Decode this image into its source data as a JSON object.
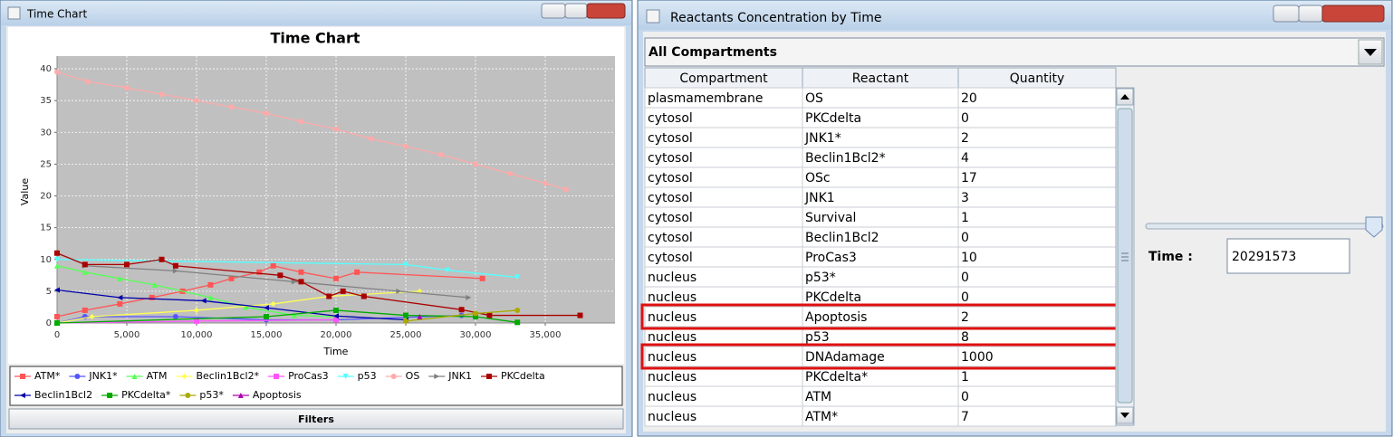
{
  "left_window": {
    "title": "Time Chart",
    "filters_button": "Filters"
  },
  "chart_data": {
    "type": "line",
    "title": "Time Chart",
    "x_label": "Time",
    "y_label": "Value",
    "xlim": [
      0,
      40000
    ],
    "ylim": [
      0,
      42
    ],
    "xticks": [
      0,
      {
        "value": 5000,
        "label": "5,000"
      },
      {
        "value": 10000,
        "label": "10,000"
      },
      {
        "value": 15000,
        "label": "15,000"
      },
      {
        "value": 20000,
        "label": "20,000"
      },
      {
        "value": 25000,
        "label": "25,000"
      },
      {
        "value": 30000,
        "label": "30,000"
      },
      {
        "value": 35000,
        "label": "35,000"
      }
    ],
    "yticks": [
      0,
      5,
      10,
      15,
      20,
      25,
      30,
      35,
      40
    ],
    "grid": true,
    "series": [
      {
        "name": "ATM*",
        "color": "#ff5555",
        "marker": "square",
        "x": [
          0,
          2000,
          4500,
          6800,
          9000,
          11000,
          12500,
          14500,
          15500,
          17500,
          20000,
          21500,
          30500
        ],
        "values": [
          1,
          2,
          3,
          4,
          5,
          6,
          7,
          8,
          9,
          8,
          7,
          8,
          7
        ]
      },
      {
        "name": "JNK1*",
        "color": "#5555ff",
        "marker": "circle",
        "x": [
          0,
          2000,
          8500,
          15000,
          20000,
          29000
        ],
        "values": [
          0,
          1,
          1,
          0.5,
          0.5,
          1.2
        ]
      },
      {
        "name": "ATM",
        "color": "#55ff55",
        "marker": "triangle-up",
        "x": [
          0,
          2000,
          4500,
          7000,
          11000,
          13500,
          17000,
          20000
        ],
        "values": [
          9,
          8,
          7,
          6,
          4,
          2.5,
          1.2,
          1
        ]
      },
      {
        "name": "Beclin1Bcl2*",
        "color": "#ffff55",
        "marker": "diamond",
        "x": [
          0,
          2500,
          10000,
          15500,
          19500,
          26000
        ],
        "values": [
          0,
          1,
          2,
          3,
          4.2,
          5
        ]
      },
      {
        "name": "ProCas3",
        "color": "#ff55ff",
        "marker": "square",
        "x": [
          0,
          10000,
          20000
        ],
        "values": [
          0,
          0.3,
          0.5
        ]
      },
      {
        "name": "p53",
        "color": "#55ffff",
        "marker": "triangle-down",
        "x": [
          0,
          25000,
          28000,
          33000
        ],
        "values": [
          10,
          9.2,
          8.3,
          7.2
        ]
      },
      {
        "name": "OS",
        "color": "#ffaaaa",
        "marker": "circle",
        "x": [
          0,
          2200,
          5000,
          7500,
          10000,
          12500,
          15000,
          17500,
          20000,
          22500,
          25000,
          27500,
          30000,
          32500,
          35000,
          36500
        ],
        "values": [
          39.5,
          38,
          37,
          36,
          35,
          34,
          33,
          31.7,
          30.5,
          29,
          27.8,
          26.5,
          25,
          23.5,
          22,
          21
        ]
      },
      {
        "name": "JNK1",
        "color": "#808080",
        "marker": "triangle-right",
        "x": [
          2000,
          8500,
          17000,
          24500,
          29500
        ],
        "values": [
          9,
          8.2,
          6.5,
          5,
          4
        ]
      },
      {
        "name": "PKCdelta",
        "color": "#aa0000",
        "marker": "square",
        "x": [
          0,
          2000,
          5000,
          7500,
          8500,
          16000,
          17500,
          19500,
          20500,
          22000,
          29000,
          31000,
          37500
        ],
        "values": [
          11,
          9.2,
          9.2,
          10,
          9,
          7.5,
          6.5,
          4.2,
          5,
          4.2,
          2.1,
          1.2,
          1.2
        ]
      },
      {
        "name": "Beclin1Bcl2",
        "color": "#0000aa",
        "marker": "triangle-left",
        "x": [
          0,
          4500,
          10500,
          15000,
          20000,
          25000
        ],
        "values": [
          5.2,
          4,
          3.5,
          2.4,
          1.1,
          0.5
        ]
      },
      {
        "name": "PKCdelta*",
        "color": "#00aa00",
        "marker": "square",
        "x": [
          0,
          15000,
          20000,
          25000,
          30000,
          33000
        ],
        "values": [
          0,
          1,
          2,
          1.2,
          1,
          0.1
        ]
      },
      {
        "name": "p53*",
        "color": "#aaaa00",
        "marker": "circle",
        "x": [
          25000,
          30000,
          33000
        ],
        "values": [
          0.3,
          1.5,
          2
        ]
      },
      {
        "name": "Apoptosis",
        "color": "#aa00aa",
        "marker": "triangle-up",
        "x": [
          26000
        ],
        "values": [
          1
        ]
      }
    ]
  },
  "right_window": {
    "title": "Reactants Concentration by Time",
    "compartment_dropdown": "All Compartments",
    "table": {
      "columns": [
        "Compartment",
        "Reactant",
        "Quantity"
      ],
      "rows": [
        [
          "plasmamembrane",
          "OS",
          "20"
        ],
        [
          "cytosol",
          "PKCdelta",
          "0"
        ],
        [
          "cytosol",
          "JNK1*",
          "2"
        ],
        [
          "cytosol",
          "Beclin1Bcl2*",
          "4"
        ],
        [
          "cytosol",
          "OSc",
          "17"
        ],
        [
          "cytosol",
          "JNK1",
          "3"
        ],
        [
          "cytosol",
          "Survival",
          "1"
        ],
        [
          "cytosol",
          "Beclin1Bcl2",
          "0"
        ],
        [
          "cytosol",
          "ProCas3",
          "10"
        ],
        [
          "nucleus",
          "p53*",
          "0"
        ],
        [
          "nucleus",
          "PKCdelta",
          "0"
        ],
        [
          "nucleus",
          "Apoptosis",
          "2"
        ],
        [
          "nucleus",
          "p53",
          "8"
        ],
        [
          "nucleus",
          "DNAdamage",
          "1000"
        ],
        [
          "nucleus",
          "PKCdelta*",
          "1"
        ],
        [
          "nucleus",
          "ATM",
          "0"
        ],
        [
          "nucleus",
          "ATM*",
          "7"
        ]
      ],
      "highlighted_rows": [
        11,
        13
      ]
    },
    "time_label": "Time :",
    "time_value": "20291573"
  }
}
